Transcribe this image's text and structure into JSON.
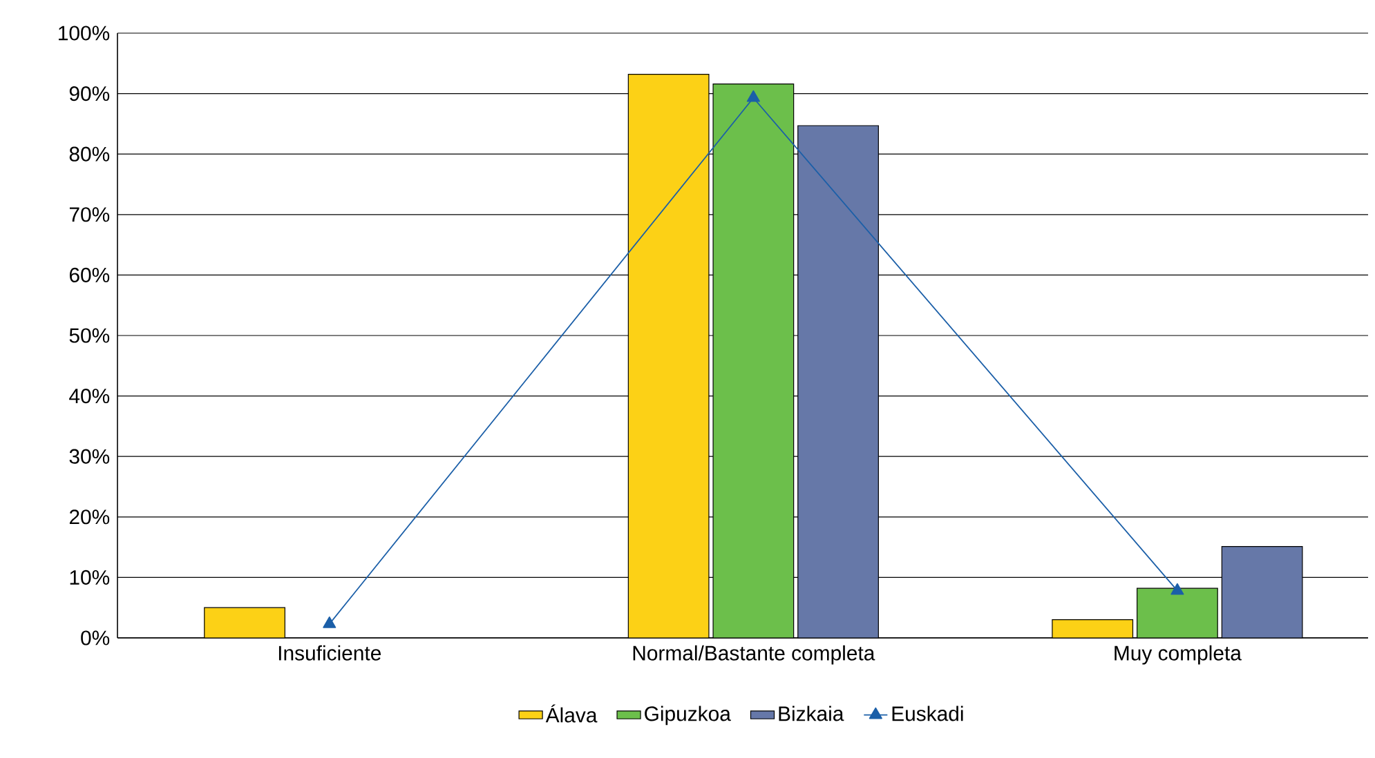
{
  "chart_data": {
    "type": "bar",
    "categories": [
      "Insuficiente",
      "Normal/Bastante completa",
      "Muy completa"
    ],
    "series": [
      {
        "name": "Álava",
        "color": "#fcd116",
        "values": [
          5.0,
          93.2,
          3.0
        ]
      },
      {
        "name": "Gipuzkoa",
        "color": "#6cbf4b",
        "values": [
          null,
          91.6,
          8.2
        ]
      },
      {
        "name": "Bizkaia",
        "color": "#6678a8",
        "values": [
          null,
          84.7,
          15.1
        ]
      },
      {
        "name": "Euskadi",
        "type": "line",
        "color": "#1b5fa8",
        "marker": "triangle",
        "values": [
          2.3,
          89.3,
          7.8
        ]
      }
    ],
    "ylim": [
      0,
      100
    ],
    "yticks": [
      {
        "value": 0,
        "label": "0%"
      },
      {
        "value": 10,
        "label": "10%"
      },
      {
        "value": 20,
        "label": "20%"
      },
      {
        "value": 30,
        "label": "30%"
      },
      {
        "value": 40,
        "label": "40%"
      },
      {
        "value": 50,
        "label": "50%"
      },
      {
        "value": 60,
        "label": "60%"
      },
      {
        "value": 70,
        "label": "70%"
      },
      {
        "value": 80,
        "label": "80%"
      },
      {
        "value": 90,
        "label": "90%"
      },
      {
        "value": 100,
        "label": "100%"
      }
    ],
    "grid": "y",
    "legend": "bottom"
  }
}
